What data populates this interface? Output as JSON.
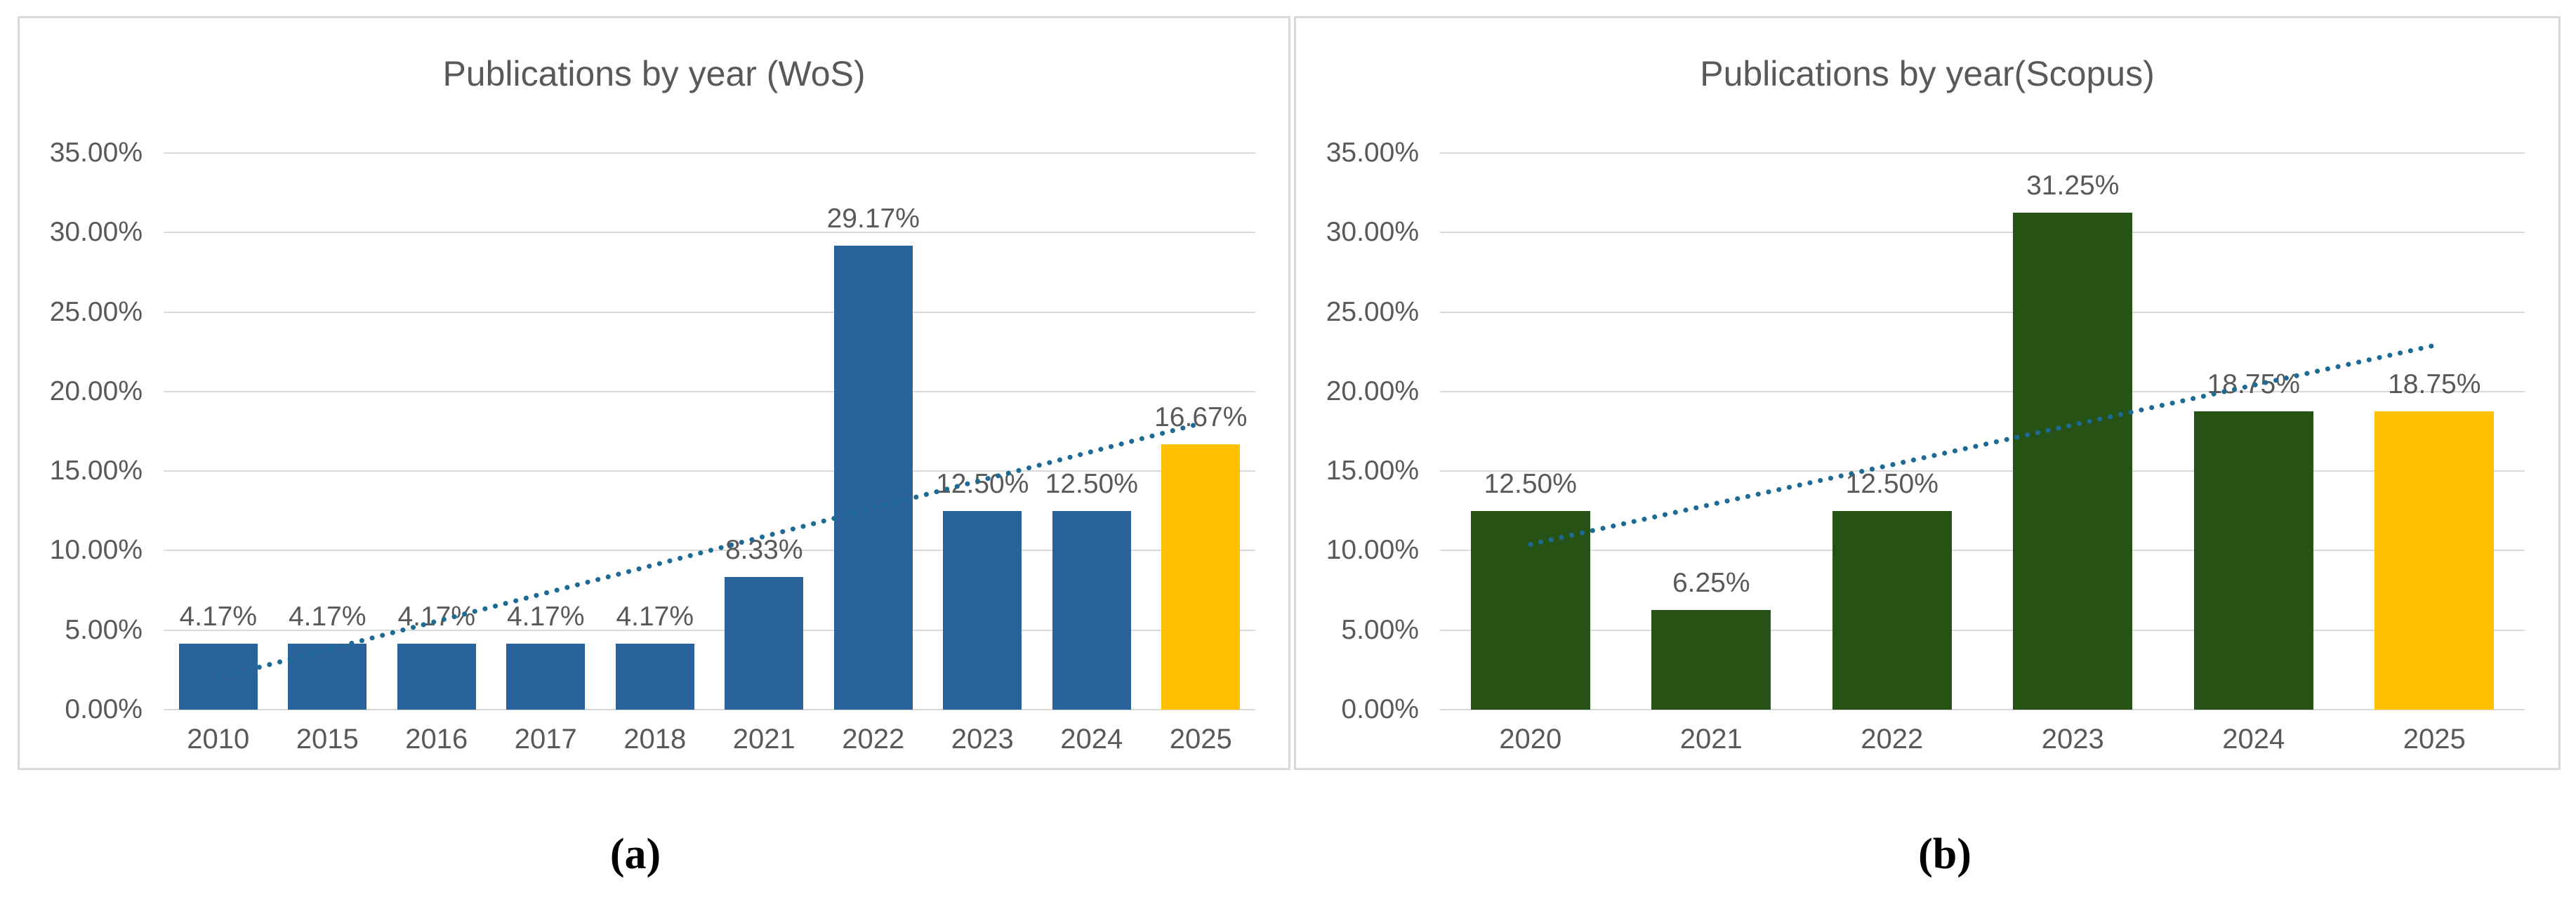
{
  "figure": {
    "captions": {
      "a": "(a)",
      "b": "(b)"
    }
  },
  "style": {
    "grid_color": "#d9d9d9",
    "axis_text_color": "#595959",
    "panel_border_color": "#d9d9d9"
  },
  "chart_data": [
    {
      "type": "bar",
      "title": "Publications by year (WoS)",
      "categories": [
        "2010",
        "2015",
        "2016",
        "2017",
        "2018",
        "2021",
        "2022",
        "2023",
        "2024",
        "2025"
      ],
      "values": [
        4.17,
        4.17,
        4.17,
        4.17,
        4.17,
        8.33,
        29.17,
        12.5,
        12.5,
        16.67
      ],
      "value_labels": [
        "4.17%",
        "4.17%",
        "4.17%",
        "4.17%",
        "4.17%",
        "8.33%",
        "29.17%",
        "12.50%",
        "12.50%",
        "16.67%"
      ],
      "bar_colors": [
        "#2a639c",
        "#2a639c",
        "#2a639c",
        "#2a639c",
        "#2a639c",
        "#2a639c",
        "#2a639c",
        "#2a639c",
        "#2a639c",
        "#ffc000"
      ],
      "ylim": [
        0,
        35
      ],
      "ytick_step": 5,
      "ytick_labels": [
        "0.00%",
        "5.00%",
        "10.00%",
        "15.00%",
        "20.00%",
        "25.00%",
        "30.00%",
        "35.00%"
      ],
      "grid": true,
      "legend": "none",
      "trendline": {
        "style": "dotted",
        "color": "#1d6b94",
        "start_value": 2.0,
        "end_value": 18.0
      }
    },
    {
      "type": "bar",
      "title": "Publications by year(Scopus)",
      "categories": [
        "2020",
        "2021",
        "2022",
        "2023",
        "2024",
        "2025"
      ],
      "values": [
        12.5,
        6.25,
        12.5,
        31.25,
        18.75,
        18.75
      ],
      "value_labels": [
        "12.50%",
        "6.25%",
        "12.50%",
        "31.25%",
        "18.75%",
        "18.75%"
      ],
      "bar_colors": [
        "#265216",
        "#265216",
        "#265216",
        "#265216",
        "#265216",
        "#ffc000"
      ],
      "ylim": [
        0,
        35
      ],
      "ytick_step": 5,
      "ytick_labels": [
        "0.00%",
        "5.00%",
        "10.00%",
        "15.00%",
        "20.00%",
        "25.00%",
        "30.00%",
        "35.00%"
      ],
      "grid": true,
      "legend": "none",
      "trendline": {
        "style": "dotted",
        "color": "#1d6b94",
        "start_value": 10.4,
        "end_value": 22.9
      }
    }
  ]
}
